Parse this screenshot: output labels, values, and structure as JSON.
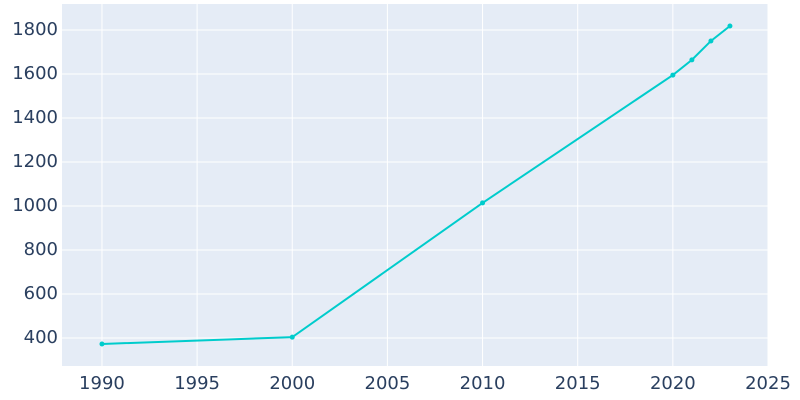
{
  "chart_data": {
    "type": "line",
    "x": [
      1990,
      2000,
      2010,
      2020,
      2021,
      2022,
      2023
    ],
    "values": [
      373,
      404,
      1014,
      1595,
      1664,
      1750,
      1818
    ],
    "color": "#00cccc",
    "xlim": [
      1987.9,
      2025
    ],
    "xticks": [
      1990,
      1995,
      2000,
      2005,
      2010,
      2015,
      2020,
      2025
    ],
    "ylim": [
      273,
      1918
    ],
    "yticks": [
      400,
      600,
      800,
      1000,
      1200,
      1400,
      1600,
      1800
    ],
    "grid": true
  }
}
